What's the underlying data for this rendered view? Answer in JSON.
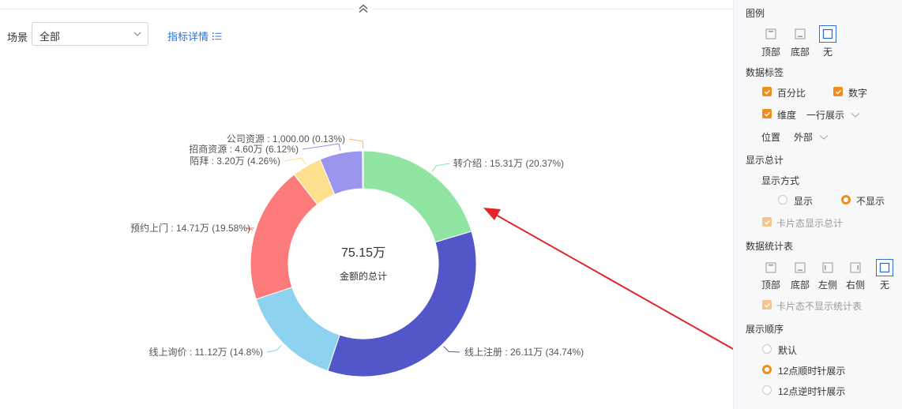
{
  "header": {
    "filter_label": "场景",
    "scene_select_value": "全部",
    "detail_link": "指标详情"
  },
  "chart_data": {
    "type": "pie",
    "variant": "donut",
    "center_value": "75.15万",
    "center_label": "金额的总计",
    "slices": [
      {
        "name": "转介绍",
        "value_text": "15.31万",
        "percent": 20.37,
        "color": "#8fe5a1"
      },
      {
        "name": "线上注册",
        "value_text": "26.11万",
        "percent": 34.74,
        "color": "#5256c8"
      },
      {
        "name": "线上询价",
        "value_text": "11.12万",
        "percent": 14.8,
        "color": "#8dd3f0"
      },
      {
        "name": "预约上门",
        "value_text": "14.71万",
        "percent": 19.58,
        "color": "#fd7a7a"
      },
      {
        "name": "陌拜",
        "value_text": "3.20万",
        "percent": 4.26,
        "color": "#fde08e"
      },
      {
        "name": "招商资源",
        "value_text": "4.60万",
        "percent": 6.12,
        "color": "#9b95ee"
      },
      {
        "name": "公司资源",
        "value_text": "1,000.00",
        "percent": 0.13,
        "color": "#fbb36b"
      }
    ],
    "labels": [
      "转介绍 : 15.31万 (20.37%)",
      "线上注册 : 26.11万 (34.74%)",
      "线上询价 : 11.12万 (14.8%)",
      "预约上门 : 14.71万 (19.58%)",
      "陌拜 : 3.20万 (4.26%)",
      "招商资源 : 4.60万 (6.12%)",
      "公司资源 : 1,000.00 (0.13%)"
    ],
    "start_angle": "12 o'clock",
    "direction": "clockwise",
    "legend": "none"
  },
  "annotation": {
    "arrow_color": "#e0252b"
  },
  "panel": {
    "legend": {
      "title": "图例",
      "options": [
        "顶部",
        "底部",
        "无"
      ],
      "selected": "无"
    },
    "data_labels": {
      "title": "数据标签",
      "percent": "百分比",
      "number": "数字",
      "dimension": "维度",
      "dimension_mode": "一行展示",
      "position_label": "位置",
      "position_value": "外部"
    },
    "show_total": {
      "title": "显示总计",
      "mode_label": "显示方式",
      "options": [
        "显示",
        "不显示"
      ],
      "selected": "不显示",
      "card_total": "卡片态显示总计"
    },
    "stat_table": {
      "title": "数据统计表",
      "options": [
        "顶部",
        "底部",
        "左侧",
        "右侧",
        "无"
      ],
      "selected": "无",
      "card_hide": "卡片态不显示统计表"
    },
    "order": {
      "title": "展示顺序",
      "options": [
        "默认",
        "12点顺时针展示",
        "12点逆时针展示"
      ],
      "selected": "12点顺时针展示"
    }
  }
}
